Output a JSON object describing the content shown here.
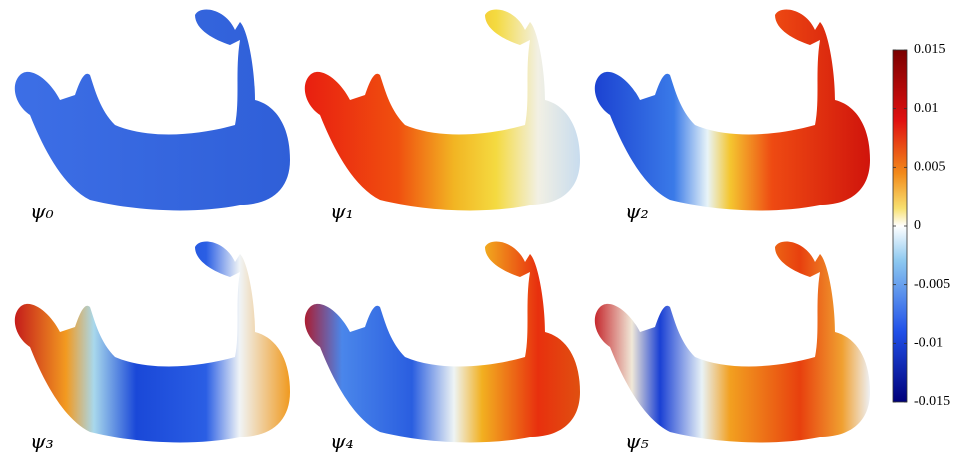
{
  "panels": [
    {
      "label": "ψ₀"
    },
    {
      "label": "ψ₁"
    },
    {
      "label": "ψ₂"
    },
    {
      "label": "ψ₃"
    },
    {
      "label": "ψ₄"
    },
    {
      "label": "ψ₅"
    }
  ],
  "colorbar": {
    "lim": [
      -0.015,
      0.015
    ],
    "ticks": [
      -0.015,
      -0.01,
      -0.005,
      0,
      0.005,
      0.01,
      0.015
    ]
  }
}
